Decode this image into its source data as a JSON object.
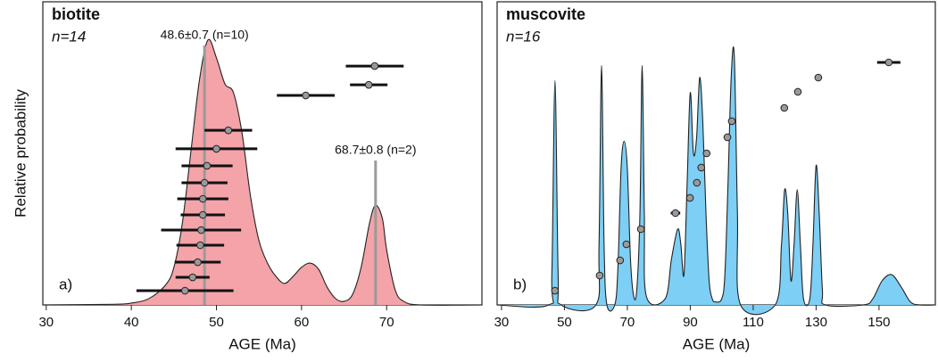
{
  "chart_data": [
    {
      "type": "density",
      "title": "biotite",
      "subtitle": "n=14",
      "panel_label": "a)",
      "x_label": "AGE (Ma)",
      "y_label": "Relative probability",
      "xlim": [
        29.6,
        81.2
      ],
      "xticks": [
        30,
        40,
        50,
        60,
        70
      ],
      "ylim": [
        0,
        1
      ],
      "density": {
        "color": "#f4a3a8",
        "x": [
          29.6,
          38,
          40,
          42,
          44,
          45,
          46,
          47,
          48,
          49,
          50,
          51,
          52,
          53,
          54,
          55,
          56,
          57,
          58,
          59,
          60,
          61,
          62,
          63,
          64,
          65,
          66,
          67,
          68,
          68.7,
          69.5,
          70,
          71,
          72,
          74,
          81.2
        ],
        "values": [
          0,
          0.002,
          0.006,
          0.02,
          0.065,
          0.124,
          0.271,
          0.506,
          0.741,
          0.874,
          0.815,
          0.729,
          0.7,
          0.568,
          0.359,
          0.212,
          0.138,
          0.094,
          0.071,
          0.094,
          0.124,
          0.138,
          0.118,
          0.059,
          0.021,
          0.012,
          0.035,
          0.124,
          0.271,
          0.329,
          0.285,
          0.182,
          0.05,
          0.012,
          0,
          0
        ]
      },
      "grains": {
        "x": [
          46.3,
          47.2,
          47.8,
          48.1,
          48.2,
          48.4,
          48.4,
          48.6,
          48.9,
          50.0,
          51.4,
          60.5,
          67.9,
          68.6
        ],
        "errors": [
          5.7,
          2.0,
          2.7,
          2.8,
          4.7,
          2.6,
          3.0,
          2.7,
          3.0,
          4.8,
          2.8,
          3.4,
          2.2,
          3.4
        ],
        "y": [
          0.047,
          0.091,
          0.141,
          0.197,
          0.247,
          0.297,
          0.35,
          0.403,
          0.459,
          0.515,
          0.576,
          0.691,
          0.726,
          0.788
        ]
      },
      "annotations": [
        {
          "x": 48.6,
          "text": "48.6±0.7 (n=10)"
        },
        {
          "x": 68.7,
          "text": "68.7±0.8 (n=2)"
        }
      ]
    },
    {
      "type": "density",
      "title": "muscovite",
      "subtitle": "n=16",
      "panel_label": "b)",
      "x_label": "AGE (Ma)",
      "xlim": [
        28.6,
        167.9
      ],
      "xticks": [
        30,
        50,
        70,
        90,
        110,
        130,
        150
      ],
      "ylim": [
        0,
        1
      ],
      "density": {
        "color": "#7dcff5",
        "x": [
          28.6,
          45,
          46,
          47,
          48,
          49,
          60,
          61,
          61.8,
          62.6,
          63.5,
          66,
          67,
          68,
          69,
          70,
          71,
          72,
          73,
          74,
          74.7,
          75.4,
          76,
          82,
          84,
          86,
          87,
          88,
          89,
          90,
          91,
          92,
          93,
          94,
          95,
          96,
          97,
          98,
          100,
          101,
          102,
          103,
          104,
          105,
          106,
          117,
          119,
          120,
          121,
          122,
          123,
          124,
          125,
          126,
          128,
          129,
          130,
          131,
          132,
          133,
          145,
          148,
          151,
          154,
          157,
          160,
          163,
          167.9
        ],
        "values": [
          0,
          0,
          0.1,
          0.74,
          0.1,
          0,
          0,
          0.2,
          0.79,
          0.2,
          0,
          0,
          0.12,
          0.45,
          0.54,
          0.45,
          0.15,
          0.03,
          0.05,
          0.3,
          0.79,
          0.3,
          0.03,
          0.02,
          0.15,
          0.25,
          0.2,
          0.1,
          0.4,
          0.7,
          0.5,
          0.55,
          0.75,
          0.6,
          0.3,
          0.08,
          0.02,
          0.01,
          0.02,
          0.1,
          0.4,
          0.75,
          0.82,
          0.3,
          0,
          0,
          0.2,
          0.38,
          0.3,
          0.08,
          0.2,
          0.38,
          0.2,
          0.02,
          0.02,
          0.2,
          0.46,
          0.3,
          0.05,
          0,
          0,
          0.02,
          0.08,
          0.1,
          0.06,
          0.01,
          0,
          0
        ]
      },
      "grains": {
        "x": [
          47.0,
          61.2,
          67.7,
          69.7,
          74.3,
          85.3,
          89.9,
          92.1,
          93.5,
          95.2,
          101.8,
          103.2,
          119.9,
          124.2,
          130.7,
          153.1
        ],
        "errors": [
          0.8,
          0.8,
          0.8,
          0.8,
          0.8,
          1.5,
          0.8,
          0.8,
          0.8,
          0.8,
          0.8,
          0.8,
          0.8,
          0.8,
          0.8,
          3.7
        ],
        "y": [
          0.047,
          0.097,
          0.147,
          0.2,
          0.25,
          0.303,
          0.353,
          0.403,
          0.453,
          0.5,
          0.553,
          0.606,
          0.65,
          0.703,
          0.75,
          0.8
        ]
      }
    }
  ]
}
